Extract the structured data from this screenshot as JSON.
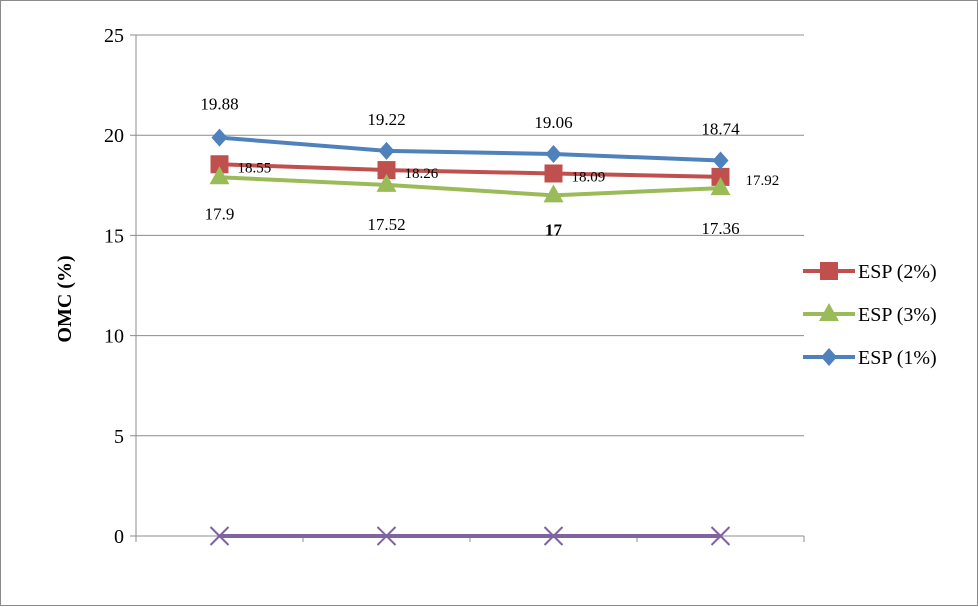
{
  "chart_data": {
    "type": "line",
    "title": "",
    "xlabel": "",
    "ylabel": "OMC (%)",
    "ylim": [
      0,
      25
    ],
    "y_ticks": [
      "0",
      "5",
      "10",
      "15",
      "20",
      "25"
    ],
    "categories": [
      "",
      "",
      "",
      ""
    ],
    "grid": true,
    "legend_position": "right",
    "series": [
      {
        "name": "ESP (2%)",
        "values": [
          18.55,
          18.26,
          18.09,
          17.92
        ],
        "labels": [
          "18.55",
          "18.26",
          "18.09",
          "17.92"
        ],
        "color": "#c0504d",
        "marker": "square"
      },
      {
        "name": "ESP (3%)",
        "values": [
          17.9,
          17.52,
          17,
          17.36
        ],
        "labels": [
          "17.9",
          "17.52",
          "17",
          "17.36"
        ],
        "color": "#9bbb59",
        "marker": "triangle"
      },
      {
        "name": "ESP (1%)",
        "values": [
          19.88,
          19.22,
          19.06,
          18.74
        ],
        "labels": [
          "19.88",
          "19.22",
          "19.06",
          "18.74"
        ],
        "color": "#4f81bd",
        "marker": "diamond"
      },
      {
        "name": "",
        "values": [
          0,
          0,
          0,
          0
        ],
        "color": "#8064a2",
        "marker": "x"
      }
    ],
    "legend_order": [
      0,
      1,
      2
    ]
  }
}
